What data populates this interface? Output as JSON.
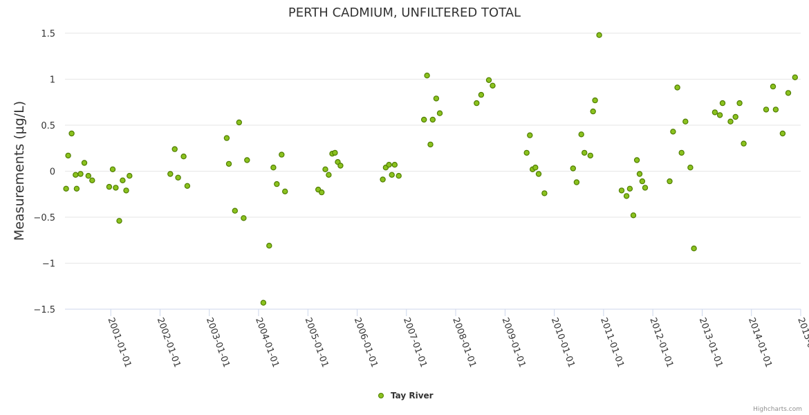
{
  "chart_data": {
    "type": "scatter",
    "title": "PERTH CADMIUM, UNFILTERED TOTAL",
    "xlabel": "",
    "ylabel": "Measurements (µg/L)",
    "x_ticks": [
      "2001-01-01",
      "2002-01-01",
      "2003-01-01",
      "2004-01-01",
      "2005-01-01",
      "2006-01-01",
      "2007-01-01",
      "2008-01-01",
      "2009-01-01",
      "2010-01-01",
      "2011-01-01",
      "2012-01-01",
      "2013-01-01",
      "2014-01-01",
      "2015-01-01"
    ],
    "y_ticks": [
      "1.5",
      "1",
      "0.5",
      "0",
      "−0.5",
      "−1",
      "−1.5"
    ],
    "ylim": [
      -1.5,
      1.5
    ],
    "grid": "horizontal",
    "legend_position": "bottom-center",
    "credits": "Highcharts.com",
    "colors": {
      "marker_fill": "#8bc21f",
      "marker_stroke": "#4f7d00",
      "grid": "#e6e6e6",
      "axis": "#ccd6eb"
    },
    "series": [
      {
        "name": "Tay River",
        "x": [
          "2000-02-05",
          "2000-02-20",
          "2000-03-17",
          "2000-04-15",
          "2000-04-23",
          "2000-05-22",
          "2000-06-19",
          "2000-07-19",
          "2000-08-16",
          "2000-12-20",
          "2001-01-15",
          "2001-02-07",
          "2001-03-05",
          "2001-03-30",
          "2001-04-25",
          "2001-05-20",
          "2002-03-18",
          "2002-04-20",
          "2002-05-15",
          "2002-06-25",
          "2002-07-22",
          "2003-05-10",
          "2003-05-26",
          "2003-07-10",
          "2003-08-10",
          "2003-09-13",
          "2003-10-08",
          "2004-02-06",
          "2004-03-20",
          "2004-04-20",
          "2004-05-15",
          "2004-06-20",
          "2004-07-15",
          "2005-03-18",
          "2005-04-13",
          "2005-05-10",
          "2005-06-04",
          "2005-06-30",
          "2005-07-20",
          "2005-08-10",
          "2005-08-30",
          "2006-07-10",
          "2006-08-01",
          "2006-08-25",
          "2006-09-15",
          "2006-10-06",
          "2006-11-05",
          "2007-05-11",
          "2007-06-03",
          "2007-06-28",
          "2007-07-15",
          "2007-08-10",
          "2007-09-05",
          "2008-06-04",
          "2008-07-08",
          "2008-09-03",
          "2008-10-01",
          "2009-06-10",
          "2009-07-04",
          "2009-07-24",
          "2009-08-14",
          "2009-09-07",
          "2009-10-20",
          "2010-05-20",
          "2010-06-15",
          "2010-07-20",
          "2010-08-12",
          "2010-09-25",
          "2010-10-15",
          "2010-10-30",
          "2010-11-30",
          "2011-05-15",
          "2011-06-20",
          "2011-07-15",
          "2011-08-10",
          "2011-09-05",
          "2011-09-25",
          "2011-10-15",
          "2011-11-05",
          "2012-05-05",
          "2012-05-30",
          "2012-07-01",
          "2012-08-01",
          "2012-08-30",
          "2012-10-05",
          "2012-11-01",
          "2013-04-05",
          "2013-05-12",
          "2013-06-01",
          "2013-07-30",
          "2013-09-05",
          "2013-10-05",
          "2013-11-05",
          "2014-04-20",
          "2014-06-10",
          "2014-06-30",
          "2014-08-20",
          "2014-10-01",
          "2014-11-20"
        ],
        "values": [
          -0.19,
          0.17,
          0.41,
          -0.04,
          -0.19,
          -0.03,
          0.09,
          -0.05,
          -0.1,
          -0.17,
          0.02,
          -0.18,
          -0.54,
          -0.1,
          -0.21,
          -0.05,
          -0.03,
          0.24,
          -0.07,
          0.16,
          -0.16,
          0.36,
          0.08,
          -0.43,
          0.53,
          -0.51,
          0.12,
          -1.43,
          -0.81,
          0.04,
          -0.14,
          0.18,
          -0.22,
          -0.2,
          -0.23,
          0.02,
          -0.04,
          0.19,
          0.2,
          0.1,
          0.06,
          -0.09,
          0.04,
          0.07,
          -0.04,
          0.07,
          -0.05,
          0.56,
          1.04,
          0.29,
          0.56,
          0.79,
          0.63,
          0.74,
          0.83,
          0.99,
          0.93,
          0.2,
          0.39,
          0.02,
          0.04,
          -0.03,
          -0.24,
          0.03,
          -0.12,
          0.4,
          0.2,
          0.17,
          0.65,
          0.77,
          1.48,
          -0.21,
          -0.27,
          -0.19,
          -0.48,
          0.12,
          -0.03,
          -0.11,
          -0.18,
          -0.11,
          0.43,
          0.91,
          0.2,
          0.54,
          0.04,
          -0.84,
          0.64,
          0.61,
          0.74,
          0.54,
          0.59,
          0.74,
          0.3,
          0.67,
          0.92,
          0.67,
          0.41,
          0.85,
          1.02
        ]
      }
    ]
  }
}
